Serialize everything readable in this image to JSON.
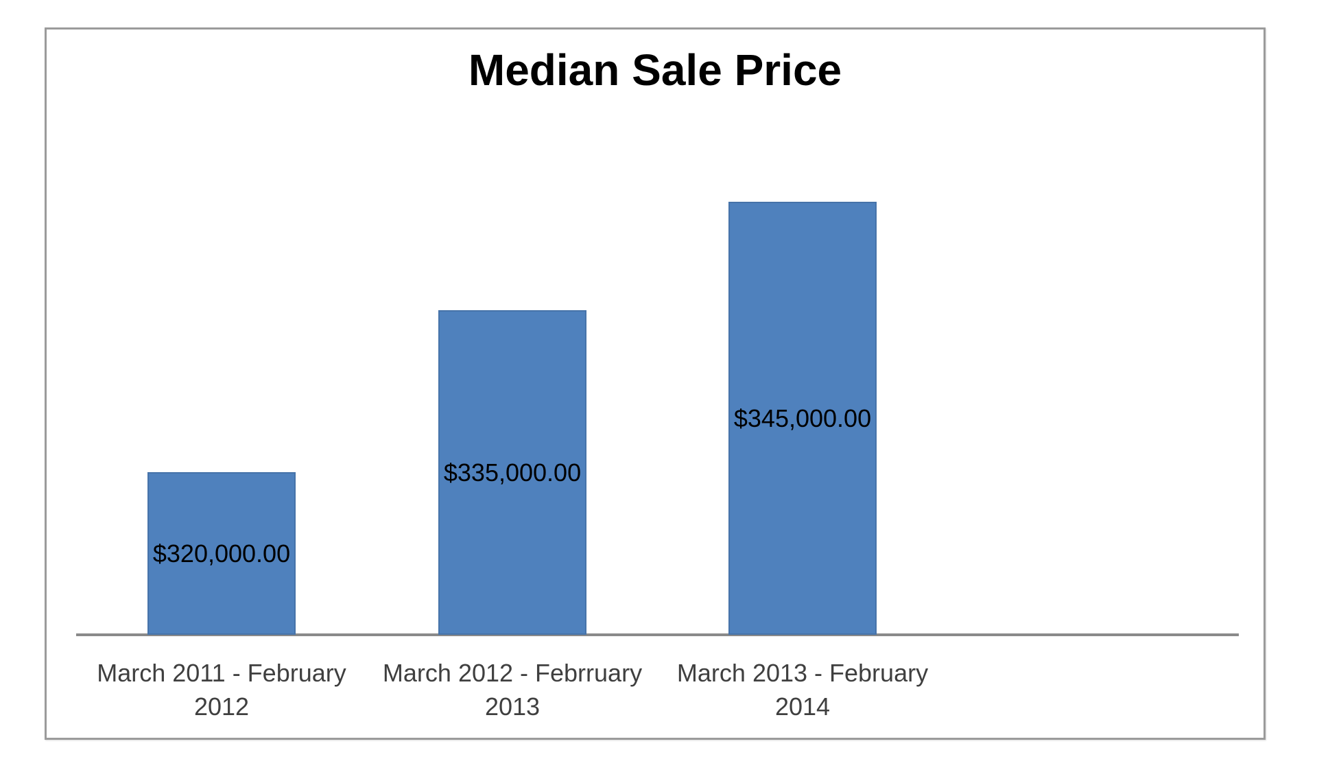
{
  "chart_data": {
    "type": "bar",
    "title": "Median Sale Price",
    "categories": [
      "March 2011 - February 2012",
      "March 2012 - Febrruary 2013",
      "March 2013 - February 2014"
    ],
    "category_label_lines": [
      [
        "March 2011 - February",
        "2012"
      ],
      [
        "March 2012 - Febrruary",
        "2013"
      ],
      [
        "March 2013 - February",
        "2014"
      ]
    ],
    "values": [
      320000,
      335000,
      345000
    ],
    "value_labels": [
      "$320,000.00",
      "$335,000.00",
      "$345,000.00"
    ],
    "series_name": "Median Sale Price",
    "xlabel": "",
    "ylabel": "",
    "legend": "none",
    "grid": "off",
    "y_axis_labels_visible": false,
    "data_label_position": "center-of-bar",
    "axis_hints": {
      "implied_value_at_axis_base": 305000,
      "implied_value_at_tallest_bar_top": 345000,
      "category_slots_on_axis": 4,
      "fourth_slot_empty": true
    },
    "colors": {
      "bar_fill": "#4F81BD",
      "bar_border": "#4673A9",
      "axis_line": "#8A8A8A",
      "frame_border": "#9B9B9B",
      "title_text": "#000000",
      "data_label_text": "#000000",
      "category_label_text": "#3F3F3F",
      "background": "#FFFFFF"
    }
  }
}
